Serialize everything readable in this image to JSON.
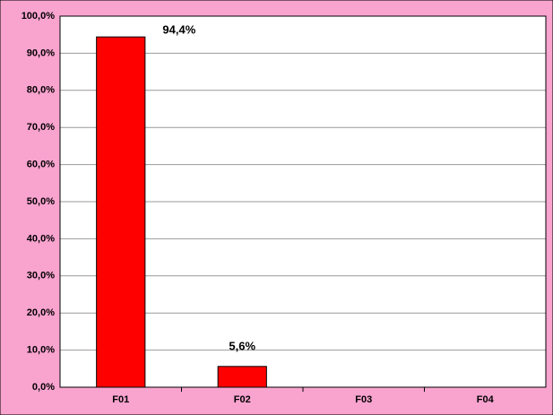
{
  "chart_data": {
    "type": "bar",
    "categories": [
      "F01",
      "F02",
      "F03",
      "F04"
    ],
    "values": [
      94.4,
      5.6,
      null,
      null
    ],
    "value_labels": [
      "94,4%",
      "5,6%",
      null,
      null
    ],
    "color": "#ff0000",
    "ylim": [
      0,
      100
    ],
    "yticks": [
      {
        "value": 0,
        "label": "0,0%"
      },
      {
        "value": 10,
        "label": "10,0%"
      },
      {
        "value": 20,
        "label": "20,0%"
      },
      {
        "value": 30,
        "label": "30,0%"
      },
      {
        "value": 40,
        "label": "40,0%"
      },
      {
        "value": 50,
        "label": "50,0%"
      },
      {
        "value": 60,
        "label": "60,0%"
      },
      {
        "value": 70,
        "label": "70,0%"
      },
      {
        "value": 80,
        "label": "80,0%"
      },
      {
        "value": 90,
        "label": "90,0%"
      },
      {
        "value": 100,
        "label": "100,0%"
      }
    ],
    "grid": true
  }
}
